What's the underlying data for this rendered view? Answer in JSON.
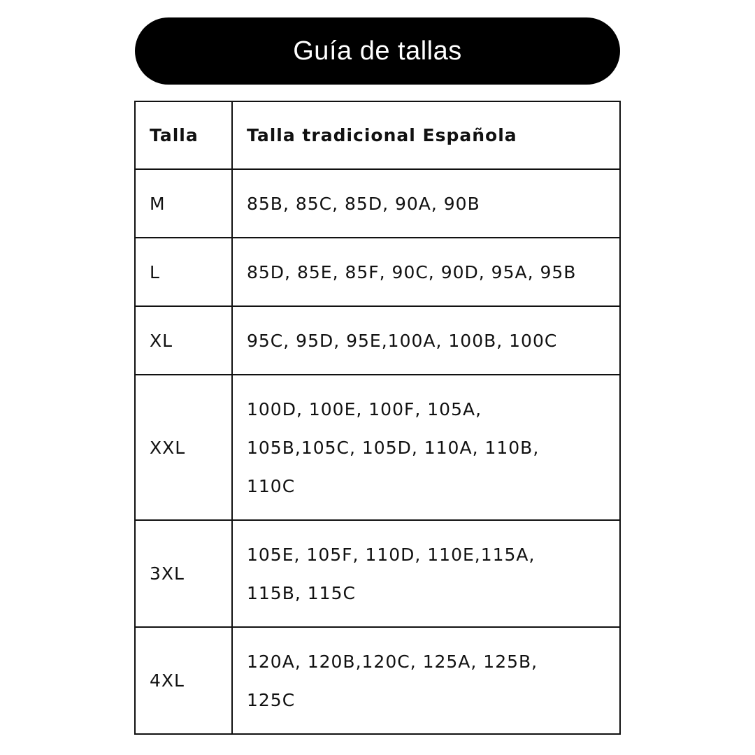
{
  "title": "Guía de tallas",
  "table": {
    "headers": [
      "Talla",
      "Talla tradicional Española"
    ],
    "rows": [
      {
        "size": "M",
        "values": "85B, 85C, 85D, 90A, 90B"
      },
      {
        "size": "L",
        "values": "85D, 85E, 85F, 90C, 90D, 95A, 95B"
      },
      {
        "size": "XL",
        "values": "95C, 95D, 95E,100A, 100B, 100C"
      },
      {
        "size": "XXL",
        "values": "100D, 100E, 100F, 105A,\n105B,105C, 105D, 110A, 110B,\n110C"
      },
      {
        "size": "3XL",
        "values": "105E, 105F, 110D, 110E,115A,\n115B, 115C"
      },
      {
        "size": "4XL",
        "values": "120A, 120B,120C, 125A, 125B,\n125C"
      }
    ]
  }
}
